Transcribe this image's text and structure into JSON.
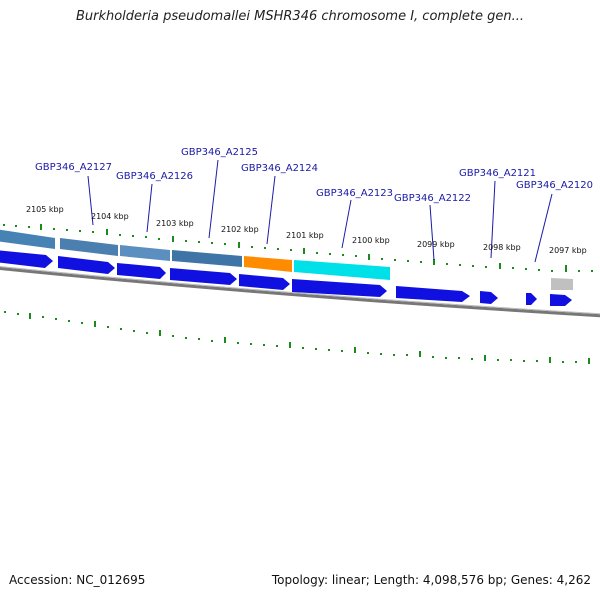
{
  "title": "Burkholderia pseudomallei MSHR346 chromosome I, complete gen...",
  "footer": {
    "accession": "Accession: NC_012695",
    "topology": "Topology: linear; Length: 4,098,576 bp; Genes: 4,262"
  },
  "colors": {
    "gene_blue": "#1010e0",
    "gene_steel": "#4682b4",
    "gene_orange": "#ff8c00",
    "gene_cyan": "#00e0e8",
    "gene_gray": "#c0c0c0",
    "tick_green": "#1a8a1a",
    "label_blue": "#1a1aa8",
    "backbone": "#808080"
  },
  "scale_labels": [
    "2105 kbp",
    "2104 kbp",
    "2103 kbp",
    "2102 kbp",
    "2101 kbp",
    "2100 kbp",
    "2099 kbp",
    "2098 kbp",
    "2097 kbp"
  ],
  "gene_labels": [
    "GBP346_A2127",
    "GBP346_A2126",
    "GBP346_A2125",
    "GBP346_A2124",
    "GBP346_A2123",
    "GBP346_A2122",
    "GBP346_A2121",
    "GBP346_A2120"
  ]
}
